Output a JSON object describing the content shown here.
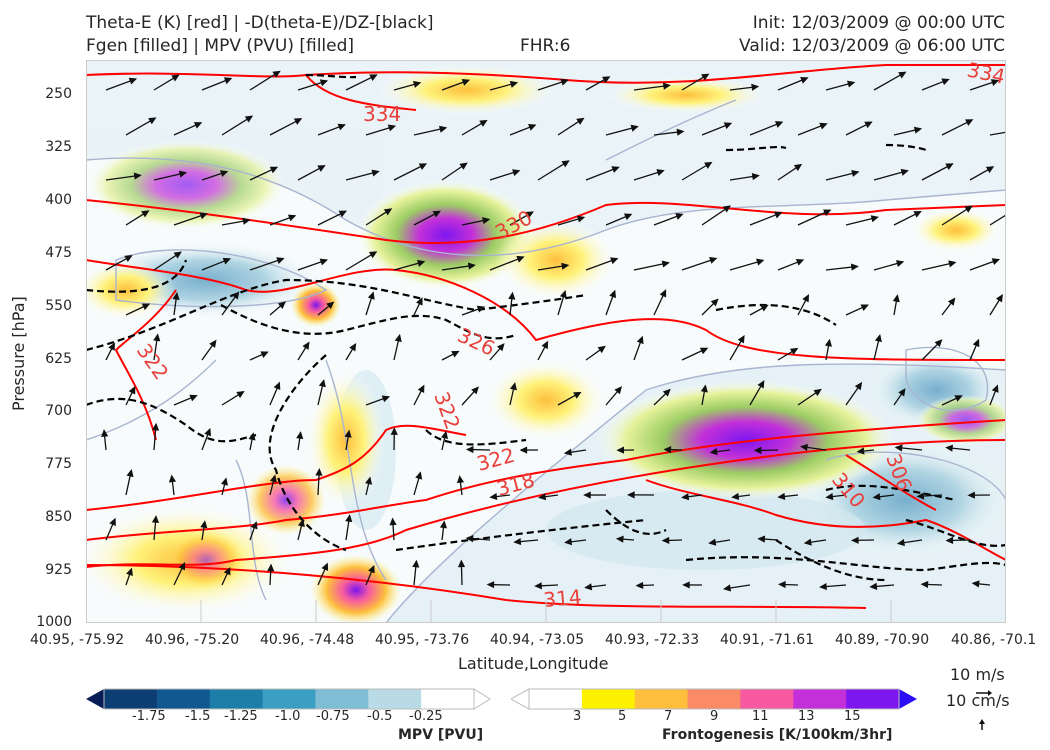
{
  "header": {
    "title_left_line1": "Theta-E (K) [red] | -D(theta-E)/DZ-[black]",
    "title_left_line2": "Fgen [filled] | MPV (PVU) [filled]",
    "fhr": "FHR:6",
    "init": "Init: 12/03/2009 @ 00:00 UTC",
    "valid": "Valid: 12/03/2009 @ 06:00 UTC"
  },
  "axes": {
    "ylabel": "Pressure [hPa]",
    "xlabel": "Latitude,Longitude",
    "yticks": [
      "250",
      "325",
      "400",
      "475",
      "550",
      "625",
      "700",
      "775",
      "850",
      "925",
      "1000"
    ],
    "xticks": [
      "40.95, -75.92",
      "40.96, -75.20",
      "40.96, -74.48",
      "40.95, -73.76",
      "40.94, -73.05",
      "40.93, -72.33",
      "40.91, -71.61",
      "40.89, -70.90",
      "40.86, -70.1"
    ]
  },
  "colorbars": {
    "mpv_ticks": [
      "-1.75",
      "-1.5",
      "-1.25",
      "-1.0",
      "-0.75",
      "-0.5",
      "-0.25"
    ],
    "mpv_label": "MPV [PVU]",
    "mpv_colors": [
      "#081d58",
      "#0c3d73",
      "#10588f",
      "#1d7fa8",
      "#3a9fc2",
      "#7fbdd4",
      "#b9dbe6",
      "#ffffff"
    ],
    "fgen_ticks": [
      "3",
      "5",
      "7",
      "9",
      "11",
      "13",
      "15"
    ],
    "fgen_label": "Frontogenesis [K/100km/3hr]",
    "fgen_colors": [
      "#ffffff",
      "#fff200",
      "#fdbf3c",
      "#fb8a66",
      "#f75aa0",
      "#c330d9",
      "#7d16ef",
      "#2a0df5"
    ]
  },
  "vector_key": {
    "label1": "10 m/s",
    "label2": "10 cm/s"
  },
  "chart_data": {
    "type": "contour",
    "title": "Theta-E (K) [red] | -D(theta-E)/DZ-[black] Fgen [filled] | MPV (PVU) [filled]",
    "xlabel": "Latitude,Longitude",
    "ylabel": "Pressure [hPa]",
    "ylim": [
      1000,
      200
    ],
    "theta_e_contour_labels": [
      "334",
      "334",
      "330",
      "326",
      "322",
      "322",
      "318",
      "314",
      "310",
      "306",
      "322"
    ]
  }
}
